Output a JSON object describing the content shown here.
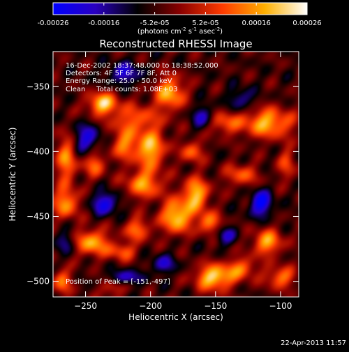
{
  "colorbar": {
    "ticks": [
      "-0.00026",
      "-0.00016",
      "-5.2e-05",
      "5.2e-05",
      "0.00016",
      "0.00026"
    ],
    "units_main": "(photons cm",
    "units_sup1": "-2",
    "units_mid1": " s",
    "units_sup2": "-1",
    "units_mid2": " asec",
    "units_sup3": "-2",
    "units_end": ")",
    "range": [
      -0.00026,
      0.00026
    ],
    "colormap": [
      "#0000ff",
      "#2a00c0",
      "#000000",
      "#8a0000",
      "#ff3b00",
      "#ffb000",
      "#ffffff"
    ]
  },
  "chart_data": {
    "type": "heatmap",
    "title": "Reconstructed RHESSI Image",
    "xlabel": "Heliocentric X (arcsec)",
    "ylabel": "Heliocentric Y (arcsec)",
    "xlim": [
      -275,
      -86
    ],
    "ylim": [
      -512,
      -323
    ],
    "xticks": [
      -250,
      -200,
      -150,
      -100
    ],
    "yticks": [
      -500,
      -450,
      -400,
      -350
    ],
    "info_lines": [
      "16-Dec-2002 18:37:48.000 to 18:38:52.000",
      "Detectors: 4F 5F 6F 7F 8F, Att 0",
      "Energy Range: 25.0 - 50.0 keV",
      "Clean     Total counts: 1.08E+03"
    ],
    "peak_label": "Position of Peak = [-151,-497]",
    "peak_position": [
      -151,
      -497
    ],
    "blobs": [
      {
        "x": -237,
        "y": -363,
        "amp": 0.95,
        "sx": 8,
        "sy": 6
      },
      {
        "x": -212,
        "y": -375,
        "amp": 0.55,
        "sx": 14,
        "sy": 8
      },
      {
        "x": -185,
        "y": -355,
        "amp": 0.85,
        "sx": 8,
        "sy": 9
      },
      {
        "x": -110,
        "y": -378,
        "amp": 0.85,
        "sx": 14,
        "sy": 8
      },
      {
        "x": -143,
        "y": -378,
        "amp": 0.55,
        "sx": 8,
        "sy": 6
      },
      {
        "x": -200,
        "y": -398,
        "amp": 0.9,
        "sx": 8,
        "sy": 10
      },
      {
        "x": -220,
        "y": -395,
        "amp": 0.65,
        "sx": 7,
        "sy": 8
      },
      {
        "x": -168,
        "y": -400,
        "amp": 0.6,
        "sx": 6,
        "sy": 6
      },
      {
        "x": -265,
        "y": -405,
        "amp": 0.7,
        "sx": 6,
        "sy": 14
      },
      {
        "x": -243,
        "y": -410,
        "amp": 0.6,
        "sx": 6,
        "sy": 7
      },
      {
        "x": -130,
        "y": -418,
        "amp": 0.55,
        "sx": 9,
        "sy": 6
      },
      {
        "x": -205,
        "y": -425,
        "amp": 0.75,
        "sx": 10,
        "sy": 8
      },
      {
        "x": -265,
        "y": -440,
        "amp": 0.75,
        "sx": 7,
        "sy": 8
      },
      {
        "x": -165,
        "y": -433,
        "amp": 0.9,
        "sx": 7,
        "sy": 9
      },
      {
        "x": -180,
        "y": -450,
        "amp": 1.0,
        "sx": 8,
        "sy": 9
      },
      {
        "x": -155,
        "y": -455,
        "amp": 0.7,
        "sx": 6,
        "sy": 6
      },
      {
        "x": -210,
        "y": -460,
        "amp": 0.65,
        "sx": 7,
        "sy": 6
      },
      {
        "x": -245,
        "y": -470,
        "amp": 0.85,
        "sx": 9,
        "sy": 7
      },
      {
        "x": -222,
        "y": -477,
        "amp": 0.55,
        "sx": 8,
        "sy": 5
      },
      {
        "x": -110,
        "y": -470,
        "amp": 0.8,
        "sx": 8,
        "sy": 7
      },
      {
        "x": -130,
        "y": -490,
        "amp": 0.6,
        "sx": 8,
        "sy": 6
      },
      {
        "x": -151,
        "y": -497,
        "amp": 1.0,
        "sx": 10,
        "sy": 7
      },
      {
        "x": -100,
        "y": -497,
        "amp": 0.65,
        "sx": 8,
        "sy": 6
      },
      {
        "x": -268,
        "y": -500,
        "amp": 0.65,
        "sx": 5,
        "sy": 7
      },
      {
        "x": -230,
        "y": -505,
        "amp": 0.45,
        "sx": 6,
        "sy": 5
      },
      {
        "x": -95,
        "y": -410,
        "amp": 0.45,
        "sx": 5,
        "sy": 9
      }
    ],
    "negatives": [
      {
        "x": -220,
        "y": -340,
        "amp": 0.55,
        "sx": 9,
        "sy": 6
      },
      {
        "x": -250,
        "y": -390,
        "amp": 0.6,
        "sx": 8,
        "sy": 8
      },
      {
        "x": -235,
        "y": -440,
        "amp": 0.7,
        "sx": 7,
        "sy": 6
      },
      {
        "x": -115,
        "y": -440,
        "amp": 0.8,
        "sx": 6,
        "sy": 7
      },
      {
        "x": -160,
        "y": -373,
        "amp": 0.5,
        "sx": 6,
        "sy": 6
      },
      {
        "x": -220,
        "y": -497,
        "amp": 0.55,
        "sx": 9,
        "sy": 4
      },
      {
        "x": -190,
        "y": -487,
        "amp": 0.5,
        "sx": 7,
        "sy": 5
      },
      {
        "x": -130,
        "y": -360,
        "amp": 0.45,
        "sx": 7,
        "sy": 6
      },
      {
        "x": -142,
        "y": -465,
        "amp": 0.45,
        "sx": 6,
        "sy": 5
      },
      {
        "x": -265,
        "y": -470,
        "amp": 0.4,
        "sx": 5,
        "sy": 6
      }
    ]
  },
  "footer": {
    "timestamp": "22-Apr-2013 11:57"
  }
}
